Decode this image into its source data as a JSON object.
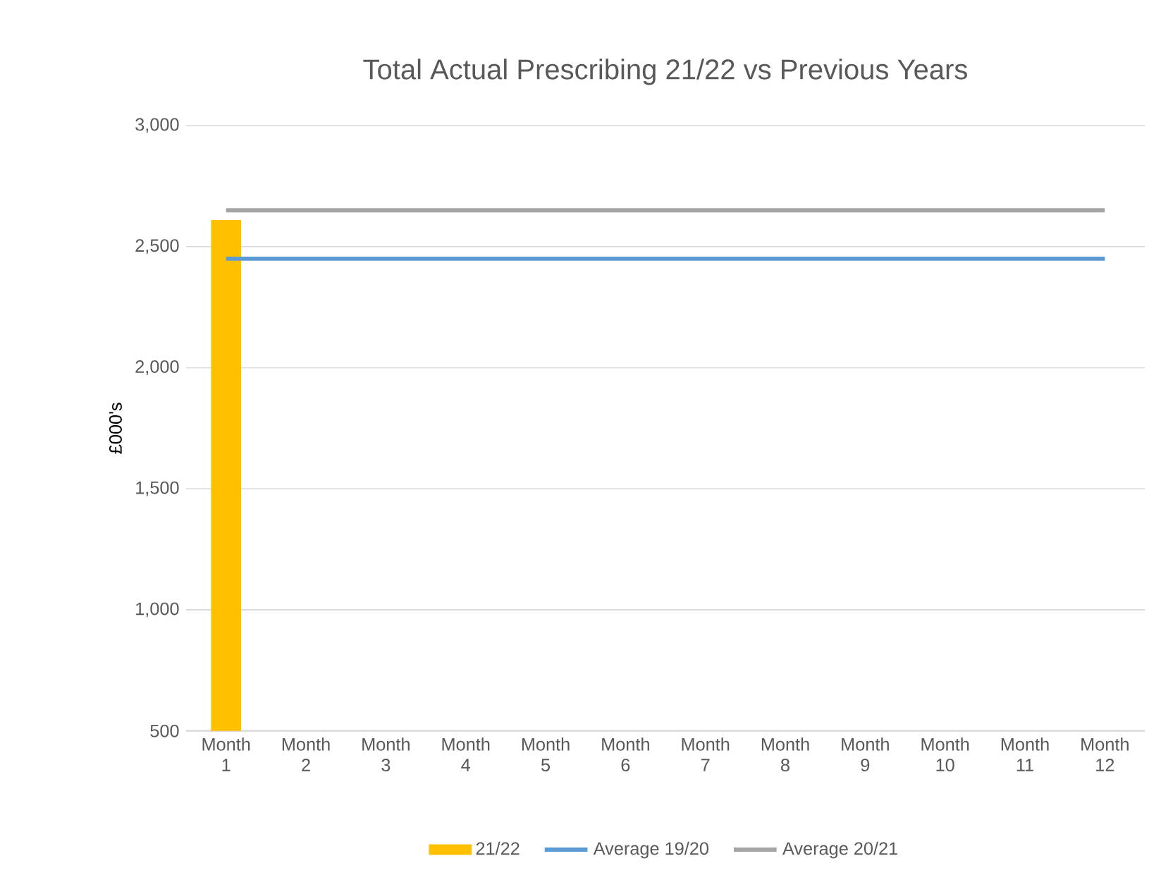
{
  "chart_data": {
    "type": "bar",
    "title": "Total Actual Prescribing 21/22 vs Previous Years",
    "ylabel": "£000's",
    "categories": [
      "Month 1",
      "Month 2",
      "Month 3",
      "Month 4",
      "Month 5",
      "Month 6",
      "Month 7",
      "Month 8",
      "Month 9",
      "Month 10",
      "Month 11",
      "Month 12"
    ],
    "series": [
      {
        "name": "21/22",
        "color": "#ffc000",
        "values": [
          2610,
          null,
          null,
          null,
          null,
          null,
          null,
          null,
          null,
          null,
          null,
          null
        ]
      },
      {
        "name": "Average 19/20",
        "type": "line",
        "color": "#5b9bd5",
        "values": [
          2450,
          2450,
          2450,
          2450,
          2450,
          2450,
          2450,
          2450,
          2450,
          2450,
          2450,
          2450
        ]
      },
      {
        "name": "Average 20/21",
        "type": "line",
        "color": "#a5a5a5",
        "values": [
          2650,
          2650,
          2650,
          2650,
          2650,
          2650,
          2650,
          2650,
          2650,
          2650,
          2650,
          2650
        ]
      }
    ],
    "ylim": [
      500,
      3000
    ],
    "yticks": [
      {
        "value": 500,
        "label": "500"
      },
      {
        "value": 1000,
        "label": "1,000"
      },
      {
        "value": 1500,
        "label": "1,500"
      },
      {
        "value": 2000,
        "label": "2,000"
      },
      {
        "value": 2500,
        "label": "2,500"
      },
      {
        "value": 3000,
        "label": "3,000"
      }
    ],
    "grid": "y",
    "legend": "bottom",
    "marker": "none"
  }
}
